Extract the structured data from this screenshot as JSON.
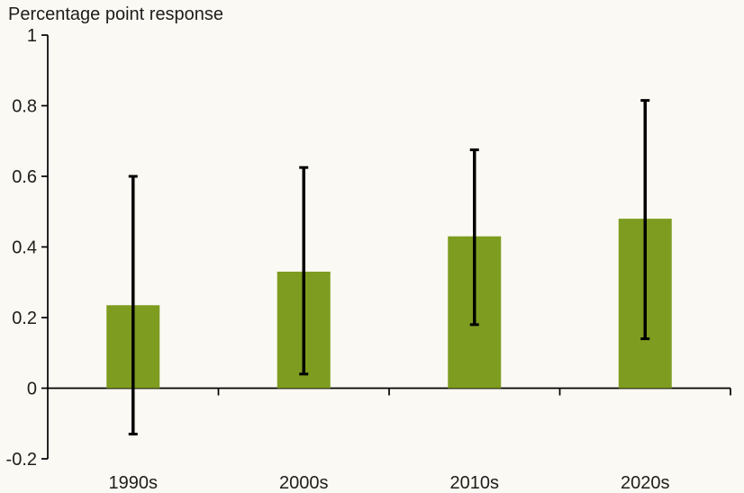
{
  "chart_data": {
    "type": "bar",
    "title": "Percentage point response",
    "xlabel": "",
    "ylabel": "Percentage point response",
    "categories": [
      "1990s",
      "2000s",
      "2010s",
      "2020s"
    ],
    "values": [
      0.235,
      0.33,
      0.43,
      0.48
    ],
    "error_bars": [
      {
        "low": -0.13,
        "high": 0.6
      },
      {
        "low": 0.04,
        "high": 0.625
      },
      {
        "low": 0.18,
        "high": 0.675
      },
      {
        "low": 0.14,
        "high": 0.815
      }
    ],
    "ylim": [
      -0.2,
      1
    ],
    "y_ticks": [
      1,
      0.8,
      0.6,
      0.4,
      0.2,
      0,
      -0.2
    ],
    "y_tick_labels": [
      "1",
      "0.8",
      "0.6",
      "0.4",
      "0.2",
      "0",
      "-0.2"
    ],
    "grid": false,
    "legend": "none",
    "colors": {
      "bar": "#7e9c20",
      "error_bar": "#000000",
      "axis": "#000000",
      "text": "#1d1d1b",
      "background": "#fbf9f3"
    }
  }
}
